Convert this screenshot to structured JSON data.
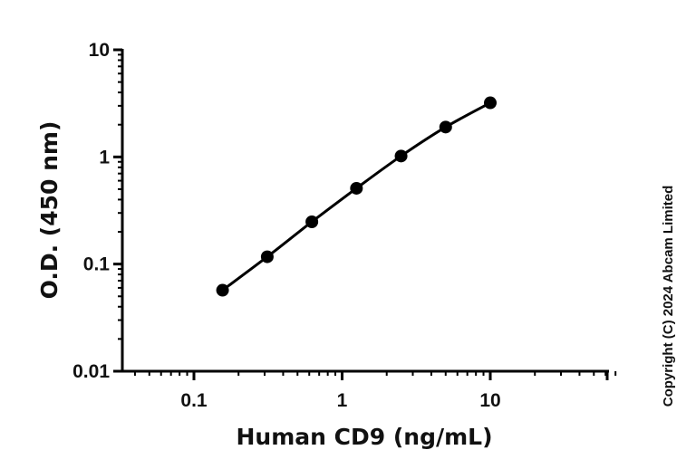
{
  "chart_data": {
    "type": "line",
    "title": "",
    "xlabel": "Human CD9 (ng/mL)",
    "ylabel": "O.D. (450 nm)",
    "xscale": "log",
    "yscale": "log",
    "xlim": [
      0.033,
      70
    ],
    "ylim": [
      0.01,
      10
    ],
    "xticks": [
      0.1,
      1,
      10
    ],
    "xtick_labels": [
      "0.1",
      "1",
      "10"
    ],
    "yticks": [
      0.01,
      0.1,
      1,
      10
    ],
    "ytick_labels": [
      "0.01",
      "0.1",
      "1",
      "10"
    ],
    "grid": false,
    "legend": null,
    "series": [
      {
        "name": "Human CD9",
        "marker": "filled-circle",
        "color": "#000000",
        "x": [
          0.156,
          0.3125,
          0.625,
          1.25,
          2.5,
          5,
          10
        ],
        "y": [
          0.057,
          0.117,
          0.248,
          0.51,
          1.02,
          1.9,
          3.2
        ]
      }
    ]
  },
  "copyright": "Copyright (C) 2024 Abcam Limited"
}
